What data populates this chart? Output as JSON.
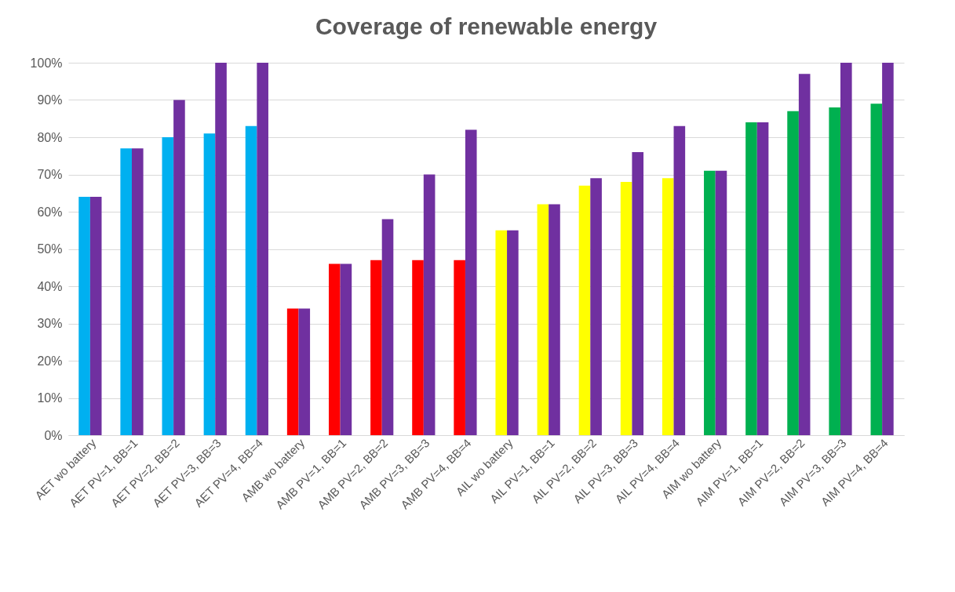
{
  "chart_data": {
    "type": "bar",
    "title": "Coverage of renewable energy",
    "categories": [
      "AET wo battery",
      "AET PV=1, BB=1",
      "AET PV=2, BB=2",
      "AET PV=3, BB=3",
      "AET PV=4, BB=4",
      "AMB wo battery",
      "AMB PV=1, BB=1",
      "AMB PV=2, BB=2",
      "AMB PV=3, BB=3",
      "AMB PV=4, BB=4",
      "AIL wo battery",
      "AIL PV=1, BB=1",
      "AIL PV=2, BB=2",
      "AIL PV=3, BB=3",
      "AIL PV=4, BB=4",
      "AIM wo battery",
      "AIM PV=1, BB=1",
      "AIM PV=2, BB=2",
      "AIM PV=3, BB=3",
      "AIM PV=4, BB=4"
    ],
    "series": [
      {
        "colors": [
          "#00b0f0",
          "#00b0f0",
          "#00b0f0",
          "#00b0f0",
          "#00b0f0",
          "#ff0000",
          "#ff0000",
          "#ff0000",
          "#ff0000",
          "#ff0000",
          "#ffff00",
          "#ffff00",
          "#ffff00",
          "#ffff00",
          "#ffff00",
          "#00b050",
          "#00b050",
          "#00b050",
          "#00b050",
          "#00b050"
        ],
        "values": [
          64,
          77,
          80,
          81,
          83,
          34,
          46,
          47,
          47,
          47,
          55,
          62,
          67,
          68,
          69,
          71,
          84,
          87,
          88,
          89
        ]
      },
      {
        "color": "#7030a0",
        "values": [
          64,
          77,
          90,
          100,
          100,
          34,
          46,
          58,
          70,
          82,
          55,
          62,
          69,
          76,
          83,
          71,
          84,
          97,
          100,
          100
        ]
      }
    ],
    "ylim": [
      0,
      100
    ],
    "yticks": [
      {
        "value": 0,
        "label": "0%"
      },
      {
        "value": 10,
        "label": "10%"
      },
      {
        "value": 20,
        "label": "20%"
      },
      {
        "value": 30,
        "label": "30%"
      },
      {
        "value": 40,
        "label": "40%"
      },
      {
        "value": 50,
        "label": "50%"
      },
      {
        "value": 60,
        "label": "60%"
      },
      {
        "value": 70,
        "label": "70%"
      },
      {
        "value": 80,
        "label": "80%"
      },
      {
        "value": 90,
        "label": "90%"
      },
      {
        "value": 100,
        "label": "100%"
      }
    ],
    "grid": "y"
  }
}
